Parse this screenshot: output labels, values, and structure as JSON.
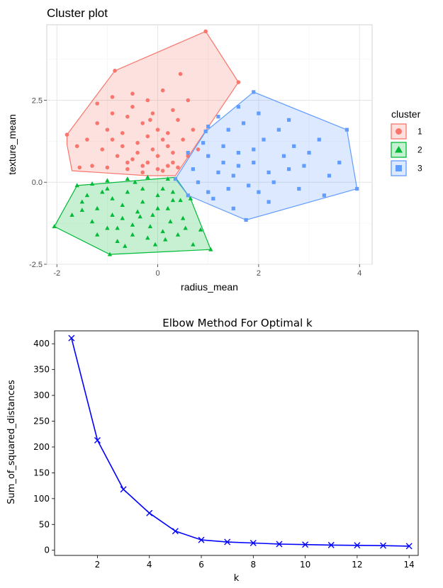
{
  "chart_data": [
    {
      "type": "scatter",
      "title": "Cluster plot",
      "xlabel": "radius_mean",
      "ylabel": "texture_mean",
      "xlim": [
        -2.2,
        4.25
      ],
      "ylim": [
        -2.5,
        4.8
      ],
      "xticks": [
        -2,
        0,
        2,
        4
      ],
      "yticks": [
        -2.5,
        0.0,
        2.5
      ],
      "ytick_labels": [
        "-2.5",
        "0.0",
        "2.5"
      ],
      "grid": true,
      "legend_title": "cluster",
      "legend_placement": "right",
      "series": [
        {
          "name": "1",
          "marker": "circle",
          "color": "#F8766D",
          "hull": [
            [
              -1.8,
              1.45
            ],
            [
              -0.85,
              3.4
            ],
            [
              0.95,
              4.6
            ],
            [
              1.6,
              3.05
            ],
            [
              0.35,
              0.2
            ],
            [
              -0.2,
              0.2
            ],
            [
              -1.7,
              0.35
            ],
            [
              -1.8,
              1.15
            ]
          ],
          "points": [
            [
              -1.8,
              1.45
            ],
            [
              -0.85,
              3.4
            ],
            [
              0.95,
              4.6
            ],
            [
              1.6,
              3.05
            ],
            [
              0.45,
              3.3
            ],
            [
              -1.55,
              0.45
            ],
            [
              -1.3,
              0.5
            ],
            [
              -1.0,
              0.45
            ],
            [
              -0.6,
              0.4
            ],
            [
              -0.3,
              0.3
            ],
            [
              0.1,
              0.35
            ],
            [
              0.3,
              0.6
            ],
            [
              -1.2,
              1.8
            ],
            [
              -0.9,
              2.1
            ],
            [
              -0.5,
              2.3
            ],
            [
              -0.2,
              2.5
            ],
            [
              0.1,
              2.8
            ],
            [
              0.3,
              2.2
            ],
            [
              -0.7,
              1.5
            ],
            [
              -0.4,
              1.2
            ],
            [
              -0.1,
              1.0
            ],
            [
              0.2,
              1.1
            ],
            [
              0.5,
              1.3
            ],
            [
              0.7,
              1.6
            ],
            [
              -1.1,
              1.0
            ],
            [
              -0.8,
              0.8
            ],
            [
              -0.5,
              0.7
            ],
            [
              -0.2,
              0.6
            ],
            [
              0.0,
              0.8
            ],
            [
              0.3,
              0.9
            ],
            [
              -1.4,
              1.3
            ],
            [
              -0.9,
              2.6
            ],
            [
              -0.6,
              2.0
            ],
            [
              -0.3,
              1.8
            ],
            [
              0.0,
              1.6
            ],
            [
              0.4,
              1.9
            ],
            [
              -0.7,
              1.1
            ],
            [
              -0.4,
              0.9
            ],
            [
              0.1,
              1.3
            ],
            [
              0.6,
              0.8
            ],
            [
              -1.2,
              2.4
            ],
            [
              -0.1,
              2.1
            ],
            [
              0.2,
              1.5
            ],
            [
              0.6,
              2.5
            ],
            [
              0.8,
              1.0
            ],
            [
              -0.5,
              2.7
            ],
            [
              -0.2,
              1.4
            ],
            [
              -0.9,
              1.3
            ],
            [
              -1.6,
              1.1
            ],
            [
              -0.3,
              0.5
            ],
            [
              0.0,
              0.4
            ],
            [
              0.2,
              0.5
            ],
            [
              -0.6,
              0.6
            ],
            [
              -1.0,
              1.6
            ],
            [
              0.4,
              0.45
            ],
            [
              -0.15,
              1.9
            ]
          ]
        },
        {
          "name": "2",
          "marker": "triangle",
          "color": "#00BA38",
          "hull": [
            [
              -1.6,
              -0.1
            ],
            [
              0.35,
              0.15
            ],
            [
              0.65,
              -0.5
            ],
            [
              1.05,
              -2.05
            ],
            [
              -0.95,
              -2.2
            ],
            [
              -2.05,
              -1.35
            ]
          ],
          "points": [
            [
              -2.05,
              -1.35
            ],
            [
              -0.95,
              -2.2
            ],
            [
              1.05,
              -2.05
            ],
            [
              0.65,
              -0.5
            ],
            [
              0.85,
              -1.45
            ],
            [
              -1.6,
              -0.1
            ],
            [
              -1.3,
              -0.05
            ],
            [
              -1.0,
              0.05
            ],
            [
              -0.6,
              0.1
            ],
            [
              -0.2,
              0.15
            ],
            [
              0.2,
              0.1
            ],
            [
              -1.5,
              -0.6
            ],
            [
              -1.2,
              -0.8
            ],
            [
              -0.9,
              -0.5
            ],
            [
              -0.6,
              -0.3
            ],
            [
              -0.3,
              -0.2
            ],
            [
              0.0,
              -0.4
            ],
            [
              0.3,
              -0.3
            ],
            [
              -1.3,
              -1.2
            ],
            [
              -1.0,
              -1.4
            ],
            [
              -0.7,
              -1.1
            ],
            [
              -0.4,
              -0.9
            ],
            [
              -0.1,
              -1.0
            ],
            [
              0.2,
              -0.8
            ],
            [
              0.5,
              -1.1
            ],
            [
              -0.8,
              -1.8
            ],
            [
              -0.5,
              -1.6
            ],
            [
              -0.2,
              -1.7
            ],
            [
              0.1,
              -1.5
            ],
            [
              0.4,
              -1.6
            ],
            [
              0.7,
              -1.9
            ],
            [
              -1.7,
              -1.0
            ],
            [
              -1.1,
              -0.3
            ],
            [
              -0.7,
              -0.7
            ],
            [
              -0.3,
              -0.6
            ],
            [
              0.1,
              -0.2
            ],
            [
              0.45,
              -0.55
            ],
            [
              -0.5,
              -1.3
            ],
            [
              -0.9,
              -1.0
            ],
            [
              0.25,
              -1.2
            ],
            [
              -1.4,
              -0.4
            ],
            [
              -0.15,
              -1.35
            ],
            [
              -0.45,
              0.0
            ],
            [
              0.0,
              -0.8
            ],
            [
              -1.2,
              -1.6
            ],
            [
              0.55,
              -1.4
            ],
            [
              -0.65,
              -1.95
            ],
            [
              -0.05,
              -1.9
            ],
            [
              -1.0,
              -0.2
            ],
            [
              -0.8,
              -1.4
            ],
            [
              -0.35,
              -1.05
            ],
            [
              0.3,
              -0.55
            ],
            [
              -1.5,
              -0.85
            ],
            [
              0.15,
              -1.75
            ]
          ]
        },
        {
          "name": "3",
          "marker": "square",
          "color": "#619CFF",
          "hull": [
            [
              0.35,
              0.1
            ],
            [
              0.95,
              1.55
            ],
            [
              1.9,
              2.75
            ],
            [
              3.75,
              1.6
            ],
            [
              3.95,
              -0.2
            ],
            [
              1.75,
              -1.15
            ],
            [
              0.6,
              -0.4
            ]
          ],
          "points": [
            [
              0.35,
              0.1
            ],
            [
              0.95,
              1.55
            ],
            [
              1.9,
              2.75
            ],
            [
              3.75,
              1.6
            ],
            [
              3.95,
              -0.2
            ],
            [
              1.75,
              -1.15
            ],
            [
              0.6,
              -0.4
            ],
            [
              1.2,
              2.0
            ],
            [
              1.6,
              2.3
            ],
            [
              2.0,
              2.1
            ],
            [
              2.6,
              1.9
            ],
            [
              3.2,
              1.3
            ],
            [
              3.6,
              0.6
            ],
            [
              3.3,
              -0.4
            ],
            [
              2.8,
              -0.2
            ],
            [
              2.2,
              -0.6
            ],
            [
              1.5,
              -0.8
            ],
            [
              1.0,
              -0.3
            ],
            [
              0.7,
              0.4
            ],
            [
              1.0,
              0.8
            ],
            [
              1.3,
              1.1
            ],
            [
              1.6,
              0.9
            ],
            [
              1.9,
              0.6
            ],
            [
              2.2,
              0.3
            ],
            [
              2.5,
              0.8
            ],
            [
              2.9,
              0.5
            ],
            [
              1.2,
              0.3
            ],
            [
              1.5,
              0.2
            ],
            [
              1.8,
              -0.1
            ],
            [
              2.1,
              1.3
            ],
            [
              2.4,
              1.6
            ],
            [
              1.4,
              1.6
            ],
            [
              0.9,
              1.2
            ],
            [
              1.7,
              1.8
            ],
            [
              2.7,
              1.1
            ],
            [
              3.0,
              0.9
            ],
            [
              1.1,
              -0.5
            ],
            [
              0.8,
              0.0
            ],
            [
              2.0,
              -0.3
            ],
            [
              1.3,
              0.6
            ],
            [
              1.6,
              0.5
            ],
            [
              3.4,
              0.2
            ],
            [
              1.9,
              1.0
            ],
            [
              2.3,
              0.0
            ],
            [
              1.0,
              1.7
            ],
            [
              1.4,
              -0.2
            ],
            [
              0.6,
              0.9
            ],
            [
              2.6,
              0.4
            ]
          ]
        }
      ]
    },
    {
      "type": "line",
      "title": "Elbow Method For Optimal k",
      "xlabel": "k",
      "ylabel": "Sum_of_squared_distances",
      "xlim": [
        0.35,
        14.35
      ],
      "ylim": [
        -10,
        425
      ],
      "xticks": [
        2,
        4,
        6,
        8,
        10,
        12,
        14
      ],
      "yticks": [
        0,
        50,
        100,
        150,
        200,
        250,
        300,
        350,
        400
      ],
      "grid": false,
      "series": [
        {
          "color": "#0000ff",
          "marker": "x",
          "x": [
            1,
            2,
            3,
            4,
            5,
            6,
            7,
            8,
            9,
            10,
            11,
            12,
            13,
            14
          ],
          "y": [
            411,
            213,
            118,
            72,
            37,
            20,
            16,
            14,
            12,
            11,
            10,
            9.5,
            9,
            8
          ]
        }
      ]
    }
  ]
}
